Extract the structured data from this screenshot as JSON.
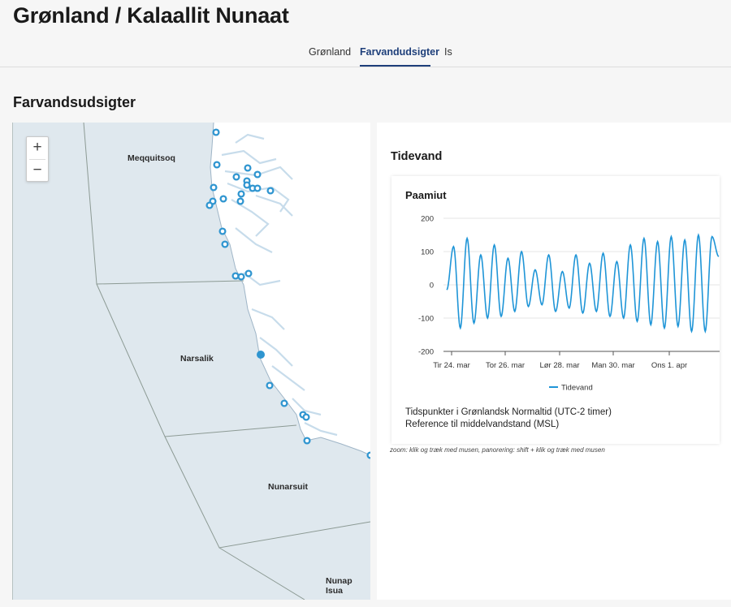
{
  "page": {
    "title": "Grønland / Kalaallit Nunaat"
  },
  "tabs": [
    {
      "label": "Grønland",
      "active": false
    },
    {
      "label": "Farvandudsigter",
      "active": true
    },
    {
      "label": "Is",
      "active": false
    }
  ],
  "section": {
    "title": "Farvandsudsigter"
  },
  "map": {
    "zoom_in": "+",
    "zoom_out": "−",
    "regions": [
      "Meqquitsoq",
      "Narsalik",
      "Nunarsuit",
      "Nunap Isua"
    ],
    "colors": {
      "sea": "#dfe8ee",
      "land": "#ffffff",
      "station": "#2f95d0",
      "boundary": "#8c9a94"
    }
  },
  "side": {
    "title": "Tidevand",
    "hint": "zoom: klik og træk med musen, panorering: shift + klik og træk med musen"
  },
  "chart": {
    "station": "Paamiut",
    "legend": "Tidevand",
    "note1": "Tidspunkter i Grønlandsk Normaltid (UTC-2 timer)",
    "note2": "Reference til middelvandstand (MSL)"
  },
  "chart_data": {
    "type": "line",
    "title": "Paamiut",
    "xlabel": "",
    "ylabel": "",
    "ylim": [
      -200,
      200
    ],
    "yticks": [
      200,
      100,
      0,
      -100,
      -200
    ],
    "x_ticks": [
      "Tir 24. mar",
      "Tor 26. mar",
      "Lør 28. mar",
      "Man 30. mar",
      "Ons 1. apr"
    ],
    "grid": true,
    "legend_position": "bottom",
    "series": [
      {
        "name": "Tidevand",
        "color": "#1f95d7",
        "peaks": [
          115,
          140,
          90,
          120,
          80,
          100,
          45,
          90,
          40,
          90,
          65,
          95,
          70,
          120,
          140,
          130,
          145,
          135,
          150,
          145
        ],
        "troughs": [
          -130,
          -115,
          -100,
          -95,
          -80,
          -65,
          -60,
          -80,
          -70,
          -85,
          -80,
          -95,
          -100,
          -110,
          -120,
          -130,
          -125,
          -140,
          -140
        ],
        "start_value": -15,
        "end_value": 85
      }
    ]
  }
}
